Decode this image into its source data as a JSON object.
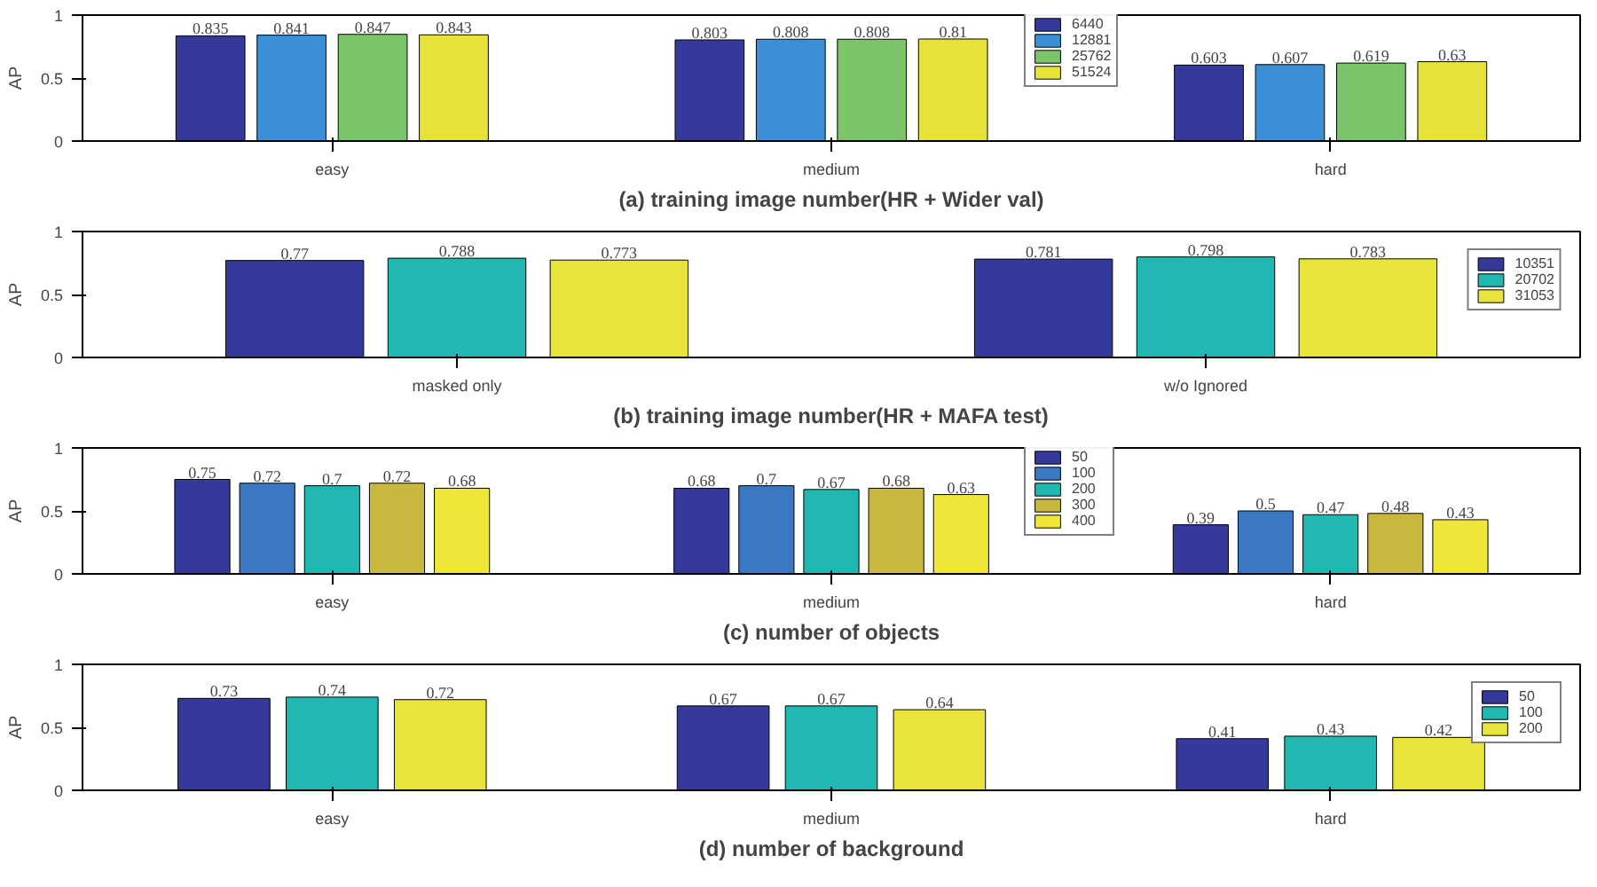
{
  "chart_data": [
    {
      "type": "bar",
      "xlabel": "(a) training image number(HR + Wider val)",
      "ylabel": "AP",
      "categories": [
        "easy",
        "medium",
        "hard"
      ],
      "ylim": [
        0,
        1
      ],
      "yticks": [
        0,
        0.5,
        1
      ],
      "data_labels": true,
      "legend": "top",
      "grid": false,
      "series": [
        {
          "name": "6440",
          "color": "#353a9a",
          "values": [
            0.835,
            0.803,
            0.603
          ]
        },
        {
          "name": "12881",
          "color": "#3b8fd6",
          "values": [
            0.841,
            0.808,
            0.607
          ]
        },
        {
          "name": "25762",
          "color": "#7cc46a",
          "values": [
            0.847,
            0.808,
            0.619
          ]
        },
        {
          "name": "51524",
          "color": "#e5e33a",
          "values": [
            0.843,
            0.81,
            0.63
          ]
        }
      ]
    },
    {
      "type": "bar",
      "xlabel": "(b) training image number(HR + MAFA test)",
      "ylabel": "AP",
      "categories": [
        "masked only",
        "w/o Ignored"
      ],
      "ylim": [
        0,
        1
      ],
      "yticks": [
        0,
        0.5,
        1
      ],
      "data_labels": true,
      "legend": "top right",
      "grid": false,
      "series": [
        {
          "name": "10351",
          "color": "#353a9a",
          "values": [
            0.77,
            0.781
          ]
        },
        {
          "name": "20702",
          "color": "#20b8b0",
          "values": [
            0.788,
            0.798
          ]
        },
        {
          "name": "31053",
          "color": "#e8e43a",
          "values": [
            0.773,
            0.783
          ]
        }
      ]
    },
    {
      "type": "bar",
      "xlabel": "(c) number of objects",
      "ylabel": "AP",
      "categories": [
        "easy",
        "medium",
        "hard"
      ],
      "ylim": [
        0,
        1
      ],
      "yticks": [
        0,
        0.5,
        1
      ],
      "data_labels": true,
      "legend": "top",
      "grid": false,
      "series": [
        {
          "name": "50",
          "color": "#353a9a",
          "values": [
            0.75,
            0.68,
            0.39
          ]
        },
        {
          "name": "100",
          "color": "#3a78c4",
          "values": [
            0.72,
            0.7,
            0.5
          ]
        },
        {
          "name": "200",
          "color": "#20b8b0",
          "values": [
            0.7,
            0.67,
            0.47
          ]
        },
        {
          "name": "300",
          "color": "#c8b840",
          "values": [
            0.72,
            0.68,
            0.48
          ]
        },
        {
          "name": "400",
          "color": "#f0e63a",
          "values": [
            0.68,
            0.63,
            0.43
          ]
        }
      ]
    },
    {
      "type": "bar",
      "xlabel": "(d) number of background",
      "ylabel": "AP",
      "categories": [
        "easy",
        "medium",
        "hard"
      ],
      "ylim": [
        0,
        1
      ],
      "yticks": [
        0,
        0.5,
        1
      ],
      "data_labels": true,
      "legend": "top right",
      "grid": false,
      "series": [
        {
          "name": "50",
          "color": "#353a9a",
          "values": [
            0.73,
            0.67,
            0.41
          ]
        },
        {
          "name": "100",
          "color": "#20b8b0",
          "values": [
            0.74,
            0.67,
            0.43
          ]
        },
        {
          "name": "200",
          "color": "#e8e43a",
          "values": [
            0.72,
            0.64,
            0.42
          ]
        }
      ]
    }
  ]
}
